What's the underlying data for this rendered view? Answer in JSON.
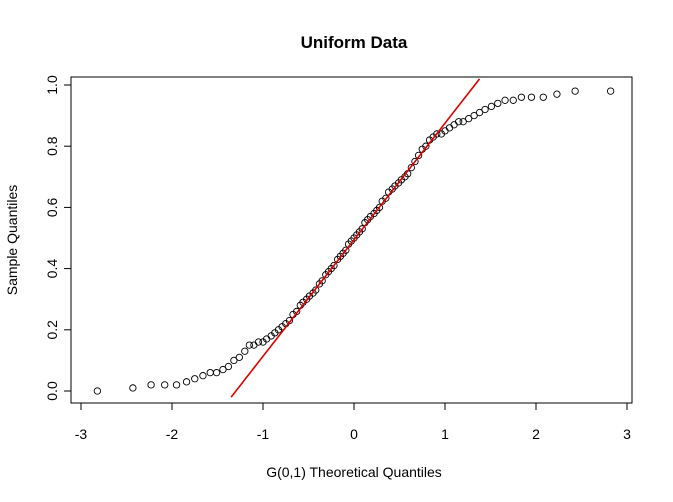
{
  "chart_data": {
    "type": "scatter",
    "title": "Uniform Data",
    "xlabel": "G(0,1) Theoretical Quantiles",
    "ylabel": "Sample Quantiles",
    "xlim": [
      -3.0,
      3.0
    ],
    "ylim": [
      -0.02,
      1.02
    ],
    "xticks": [
      -3,
      -2,
      -1,
      0,
      1,
      2,
      3
    ],
    "xtick_labels": [
      "-3",
      "-2",
      "-1",
      "0",
      "1",
      "2",
      "3"
    ],
    "yticks": [
      0.0,
      0.2,
      0.4,
      0.6,
      0.8,
      1.0
    ],
    "ytick_labels": [
      "0.0",
      "0.2",
      "0.4",
      "0.6",
      "0.8",
      "1.0"
    ],
    "grid": false,
    "colors": {
      "points": "#000000",
      "reference_line": "#e00000"
    },
    "reference_line": {
      "x": [
        -1.35,
        1.38
      ],
      "y": [
        -0.02,
        1.02
      ]
    },
    "points": {
      "x": [
        -2.82,
        -2.43,
        -2.23,
        -2.08,
        -1.95,
        -1.84,
        -1.75,
        -1.66,
        -1.58,
        -1.51,
        -1.44,
        -1.38,
        -1.32,
        -1.26,
        -1.2,
        -1.15,
        -1.1,
        -1.05,
        -1.0,
        -0.96,
        -0.91,
        -0.87,
        -0.83,
        -0.79,
        -0.75,
        -0.71,
        -0.67,
        -0.63,
        -0.59,
        -0.56,
        -0.52,
        -0.49,
        -0.45,
        -0.42,
        -0.38,
        -0.35,
        -0.31,
        -0.28,
        -0.25,
        -0.22,
        -0.18,
        -0.15,
        -0.12,
        -0.09,
        -0.06,
        -0.03,
        0.0,
        0.03,
        0.06,
        0.09,
        0.12,
        0.15,
        0.18,
        0.22,
        0.25,
        0.28,
        0.31,
        0.35,
        0.38,
        0.42,
        0.45,
        0.49,
        0.52,
        0.56,
        0.59,
        0.63,
        0.67,
        0.71,
        0.75,
        0.79,
        0.83,
        0.87,
        0.91,
        0.96,
        1.0,
        1.05,
        1.1,
        1.15,
        1.2,
        1.26,
        1.32,
        1.38,
        1.44,
        1.51,
        1.58,
        1.66,
        1.75,
        1.84,
        1.95,
        2.08,
        2.23,
        2.43,
        2.82
      ],
      "y": [
        0.0,
        0.01,
        0.02,
        0.02,
        0.02,
        0.03,
        0.04,
        0.05,
        0.06,
        0.06,
        0.07,
        0.08,
        0.1,
        0.11,
        0.13,
        0.15,
        0.15,
        0.16,
        0.16,
        0.17,
        0.18,
        0.19,
        0.2,
        0.21,
        0.22,
        0.23,
        0.25,
        0.26,
        0.28,
        0.29,
        0.3,
        0.31,
        0.32,
        0.33,
        0.35,
        0.36,
        0.38,
        0.39,
        0.4,
        0.41,
        0.43,
        0.44,
        0.45,
        0.46,
        0.48,
        0.49,
        0.5,
        0.51,
        0.52,
        0.53,
        0.55,
        0.56,
        0.57,
        0.58,
        0.59,
        0.6,
        0.62,
        0.63,
        0.65,
        0.66,
        0.67,
        0.68,
        0.69,
        0.7,
        0.71,
        0.73,
        0.75,
        0.77,
        0.79,
        0.8,
        0.82,
        0.83,
        0.84,
        0.84,
        0.85,
        0.86,
        0.87,
        0.88,
        0.88,
        0.89,
        0.9,
        0.91,
        0.92,
        0.93,
        0.94,
        0.95,
        0.95,
        0.96,
        0.96,
        0.96,
        0.97,
        0.98,
        0.98
      ]
    }
  }
}
